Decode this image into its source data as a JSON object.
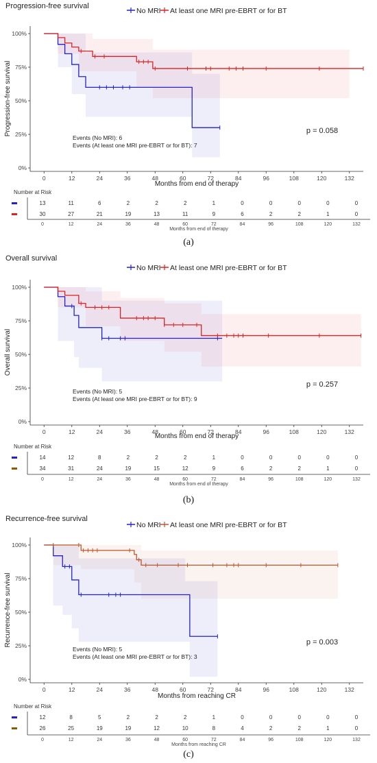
{
  "panels": [
    {
      "title": "Progression-free survival",
      "ylabel": "Progression-free survival",
      "xlabel": "Months from end of therapy",
      "pvalue": "p = 0.058",
      "events": [
        "Events (No MRI): 6",
        "Events (At least one MRI pre-EBRT or for BT): 7"
      ],
      "caption": "(a)",
      "legend": [
        "No MRI",
        "At least one MRI pre-EBRT or for BT"
      ],
      "risk": {
        "title": "Number at Risk",
        "xlabel": "Months from end of therapy",
        "rows": [
          {
            "color": "#2222cc",
            "values": [
              "13",
              "11",
              "6",
              "2",
              "2",
              "2",
              "1",
              "0",
              "0",
              "0",
              "0",
              "0"
            ]
          },
          {
            "color": "#dd2222",
            "values": [
              "30",
              "27",
              "21",
              "19",
              "13",
              "11",
              "9",
              "6",
              "2",
              "2",
              "1",
              "0"
            ]
          }
        ]
      }
    },
    {
      "title": "Overall survival",
      "ylabel": "Overall survival",
      "xlabel": "Months from end of therapy",
      "pvalue": "p = 0.257",
      "events": [
        "Events (No MRI): 5",
        "Events (At least one MRI pre-EBRT or for BT): 9"
      ],
      "caption": "(b)",
      "legend": [
        "No MRI",
        "At least one MRI pre-EBRT or for BT"
      ],
      "risk": {
        "title": "Number at Risk",
        "xlabel": "Months from end of therapy",
        "rows": [
          {
            "color": "#2222cc",
            "values": [
              "14",
              "12",
              "8",
              "2",
              "2",
              "2",
              "1",
              "0",
              "0",
              "0",
              "0",
              "0"
            ]
          },
          {
            "color": "#8b5a00",
            "values": [
              "34",
              "31",
              "24",
              "19",
              "15",
              "12",
              "9",
              "6",
              "2",
              "2",
              "1",
              "0"
            ]
          }
        ]
      }
    },
    {
      "title": "Recurrence-free survival",
      "ylabel": "Recurrence-free survival",
      "xlabel": "Months from reaching CR",
      "pvalue": "p = 0.003",
      "events": [
        "Events (No MRI): 5",
        "Events (At least one MRI pre-EBRT or for BT): 3"
      ],
      "caption": "(c)",
      "legend": [
        "No MRI",
        "At least one MRI pre-EBRT or for BT"
      ],
      "risk": {
        "title": "Number at Risk",
        "xlabel": "Months from reaching CR",
        "rows": [
          {
            "color": "#2222cc",
            "values": [
              "12",
              "8",
              "5",
              "2",
              "2",
              "2",
              "1",
              "0",
              "0",
              "0",
              "0",
              "0"
            ]
          },
          {
            "color": "#8b5a00",
            "values": [
              "26",
              "25",
              "19",
              "19",
              "12",
              "10",
              "8",
              "4",
              "2",
              "2",
              "1",
              "0"
            ]
          }
        ]
      }
    }
  ],
  "chart_data": [
    {
      "type": "line",
      "title": "Progression-free survival",
      "xlabel": "Months from end of therapy",
      "ylabel": "Progression-free survival",
      "xlim": [
        -6,
        138
      ],
      "ylim": [
        0,
        1
      ],
      "xticks": [
        0,
        12,
        24,
        36,
        48,
        60,
        72,
        84,
        96,
        108,
        120,
        132
      ],
      "yticks": [
        "0%",
        "25%",
        "50%",
        "75%",
        "100%"
      ],
      "series": [
        {
          "name": "No MRI",
          "color": "#2222cc",
          "steps": [
            [
              0,
              1.0
            ],
            [
              6,
              0.92
            ],
            [
              9,
              0.85
            ],
            [
              12,
              0.77
            ],
            [
              15,
              0.68
            ],
            [
              18,
              0.6
            ],
            [
              64,
              0.3
            ],
            [
              76,
              0.3
            ]
          ],
          "lower": [
            [
              6,
              0.75
            ],
            [
              12,
              0.55
            ],
            [
              18,
              0.38
            ],
            [
              64,
              0.08
            ],
            [
              76,
              0.08
            ]
          ],
          "upper": [
            [
              6,
              1.0
            ],
            [
              12,
              1.0
            ],
            [
              18,
              0.86
            ],
            [
              64,
              0.7
            ],
            [
              76,
              0.7
            ]
          ],
          "censor": [
            [
              24,
              0.6
            ],
            [
              27,
              0.6
            ],
            [
              30,
              0.6
            ],
            [
              34,
              0.6
            ],
            [
              37,
              0.6
            ],
            [
              76,
              0.3
            ]
          ]
        },
        {
          "name": "At least one MRI pre-EBRT or for BT",
          "color": "#dd2222",
          "steps": [
            [
              0,
              1.0
            ],
            [
              6,
              0.97
            ],
            [
              9,
              0.93
            ],
            [
              12,
              0.9
            ],
            [
              15,
              0.87
            ],
            [
              21,
              0.83
            ],
            [
              40,
              0.79
            ],
            [
              47,
              0.74
            ],
            [
              138,
              0.74
            ]
          ],
          "lower": [
            [
              6,
              0.85
            ],
            [
              15,
              0.72
            ],
            [
              40,
              0.6
            ],
            [
              47,
              0.52
            ],
            [
              132,
              0.52
            ]
          ],
          "upper": [
            [
              6,
              1.0
            ],
            [
              21,
              0.96
            ],
            [
              47,
              0.88
            ],
            [
              132,
              0.87
            ]
          ],
          "censor": [
            [
              16,
              0.87
            ],
            [
              22,
              0.83
            ],
            [
              26,
              0.83
            ],
            [
              41,
              0.79
            ],
            [
              43,
              0.79
            ],
            [
              45,
              0.79
            ],
            [
              48,
              0.74
            ],
            [
              62,
              0.74
            ],
            [
              70,
              0.74
            ],
            [
              72,
              0.74
            ],
            [
              80,
              0.74
            ],
            [
              83,
              0.74
            ],
            [
              86,
              0.74
            ],
            [
              96,
              0.74
            ],
            [
              119,
              0.74
            ],
            [
              138,
              0.74
            ]
          ]
        }
      ]
    },
    {
      "type": "line",
      "title": "Overall survival",
      "xlabel": "Months from end of therapy",
      "ylabel": "Overall survival",
      "xlim": [
        -6,
        138
      ],
      "ylim": [
        0,
        1
      ],
      "xticks": [
        0,
        12,
        24,
        36,
        48,
        60,
        72,
        84,
        96,
        108,
        120,
        132
      ],
      "yticks": [
        "0%",
        "25%",
        "50%",
        "75%",
        "100%"
      ],
      "series": [
        {
          "name": "No MRI",
          "color": "#2222cc",
          "steps": [
            [
              0,
              1.0
            ],
            [
              6,
              0.93
            ],
            [
              9,
              0.86
            ],
            [
              13,
              0.79
            ],
            [
              15,
              0.7
            ],
            [
              25,
              0.62
            ],
            [
              77,
              0.62
            ]
          ],
          "lower": [
            [
              6,
              0.6
            ],
            [
              13,
              0.48
            ],
            [
              15,
              0.4
            ],
            [
              25,
              0.3
            ],
            [
              77,
              0.3
            ]
          ],
          "upper": [
            [
              6,
              1.0
            ],
            [
              13,
              1.0
            ],
            [
              25,
              0.9
            ],
            [
              77,
              0.82
            ]
          ],
          "censor": [
            [
              12,
              0.86
            ],
            [
              25,
              0.62
            ],
            [
              28,
              0.62
            ],
            [
              33,
              0.62
            ],
            [
              35,
              0.62
            ],
            [
              75,
              0.62
            ]
          ]
        },
        {
          "name": "At least one MRI pre-EBRT or for BT",
          "color": "#dd2222",
          "steps": [
            [
              0,
              1.0
            ],
            [
              6,
              0.97
            ],
            [
              9,
              0.94
            ],
            [
              15,
              0.88
            ],
            [
              18,
              0.85
            ],
            [
              33,
              0.77
            ],
            [
              52,
              0.72
            ],
            [
              68,
              0.64
            ],
            [
              137,
              0.64
            ]
          ],
          "lower": [
            [
              6,
              0.85
            ],
            [
              18,
              0.71
            ],
            [
              33,
              0.6
            ],
            [
              52,
              0.52
            ],
            [
              68,
              0.41
            ],
            [
              137,
              0.41
            ]
          ],
          "upper": [
            [
              6,
              1.0
            ],
            [
              18,
              0.97
            ],
            [
              33,
              0.92
            ],
            [
              52,
              0.88
            ],
            [
              68,
              0.8
            ],
            [
              137,
              0.8
            ]
          ],
          "censor": [
            [
              16,
              0.88
            ],
            [
              22,
              0.85
            ],
            [
              25,
              0.85
            ],
            [
              28,
              0.85
            ],
            [
              40,
              0.77
            ],
            [
              43,
              0.77
            ],
            [
              45,
              0.77
            ],
            [
              48,
              0.77
            ],
            [
              52,
              0.72
            ],
            [
              56,
              0.72
            ],
            [
              60,
              0.72
            ],
            [
              66,
              0.72
            ],
            [
              75,
              0.64
            ],
            [
              79,
              0.64
            ],
            [
              82,
              0.64
            ],
            [
              84,
              0.64
            ],
            [
              86,
              0.64
            ],
            [
              97,
              0.64
            ],
            [
              119,
              0.64
            ],
            [
              137,
              0.64
            ]
          ]
        }
      ]
    },
    {
      "type": "line",
      "title": "Recurrence-free survival",
      "xlabel": "Months from reaching CR",
      "ylabel": "Recurrence-free survival",
      "xlim": [
        -6,
        138
      ],
      "ylim": [
        0,
        1
      ],
      "xticks": [
        0,
        12,
        24,
        36,
        48,
        60,
        72,
        84,
        96,
        108,
        120,
        132
      ],
      "yticks": [
        "0%",
        "25%",
        "50%",
        "75%",
        "100%"
      ],
      "series": [
        {
          "name": "No MRI",
          "color": "#2222cc",
          "steps": [
            [
              0,
              1.0
            ],
            [
              4,
              0.92
            ],
            [
              8,
              0.84
            ],
            [
              12,
              0.74
            ],
            [
              15,
              0.63
            ],
            [
              61,
              0.63
            ],
            [
              63,
              0.32
            ],
            [
              75,
              0.32
            ]
          ],
          "lower": [
            [
              4,
              0.55
            ],
            [
              8,
              0.48
            ],
            [
              12,
              0.38
            ],
            [
              15,
              0.28
            ],
            [
              63,
              0.02
            ],
            [
              75,
              0.02
            ]
          ],
          "upper": [
            [
              4,
              1.0
            ],
            [
              12,
              1.0
            ],
            [
              15,
              0.9
            ],
            [
              61,
              0.73
            ],
            [
              63,
              0.73
            ],
            [
              75,
              0.73
            ]
          ],
          "censor": [
            [
              9,
              0.84
            ],
            [
              11,
              0.84
            ],
            [
              16,
              0.63
            ],
            [
              28,
              0.63
            ],
            [
              31,
              0.63
            ],
            [
              33,
              0.63
            ],
            [
              75,
              0.32
            ]
          ]
        },
        {
          "name": "At least one MRI pre-EBRT or for BT",
          "color": "#c0552a",
          "steps": [
            [
              0,
              1.0
            ],
            [
              4,
              1.0
            ],
            [
              16,
              0.96
            ],
            [
              39,
              0.93
            ],
            [
              40,
              0.89
            ],
            [
              42,
              0.85
            ],
            [
              127,
              0.85
            ]
          ],
          "lower": [
            [
              4,
              0.85
            ],
            [
              16,
              0.82
            ],
            [
              39,
              0.72
            ],
            [
              42,
              0.6
            ],
            [
              127,
              0.6
            ]
          ],
          "upper": [
            [
              4,
              1.0
            ],
            [
              16,
              1.0
            ],
            [
              42,
              0.96
            ],
            [
              127,
              0.96
            ]
          ],
          "censor": [
            [
              4,
              1.0
            ],
            [
              15,
              1.0
            ],
            [
              17,
              0.96
            ],
            [
              19,
              0.96
            ],
            [
              21,
              0.96
            ],
            [
              23,
              0.96
            ],
            [
              37,
              0.96
            ],
            [
              41,
              0.89
            ],
            [
              44,
              0.85
            ],
            [
              49,
              0.85
            ],
            [
              58,
              0.85
            ],
            [
              62,
              0.85
            ],
            [
              73,
              0.85
            ],
            [
              79,
              0.85
            ],
            [
              82,
              0.85
            ],
            [
              84,
              0.85
            ],
            [
              96,
              0.85
            ],
            [
              111,
              0.85
            ],
            [
              127,
              0.85
            ]
          ]
        }
      ]
    }
  ]
}
